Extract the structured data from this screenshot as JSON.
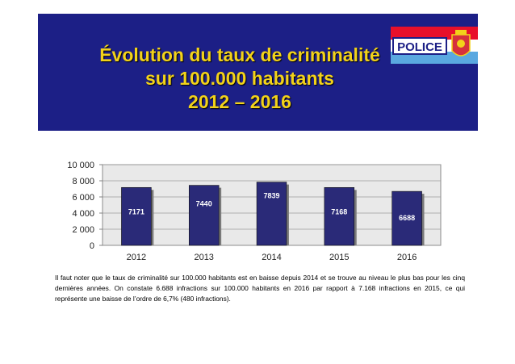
{
  "header": {
    "title_lines": [
      "Évolution du taux de criminalité",
      "sur 100.000 habitants",
      "2012 – 2016"
    ],
    "badge_text": "POLICE",
    "colors": {
      "banner": "#1c1f86",
      "title": "#f2d21a",
      "flag_red": "#e8102a",
      "flag_blue": "#5aa8e0"
    }
  },
  "chart_data": {
    "type": "bar",
    "title": "Évolution du taux de criminalité sur 100.000 habitants 2012 – 2016",
    "categories": [
      "2012",
      "2013",
      "2014",
      "2015",
      "2016"
    ],
    "values": [
      7171,
      7440,
      7839,
      7168,
      6688
    ],
    "value_labels": [
      "7171",
      "7440",
      "7839",
      "7168",
      "6688"
    ],
    "ylim": [
      0,
      10000
    ],
    "y_ticks": [
      0,
      2000,
      4000,
      6000,
      8000,
      10000
    ],
    "y_tick_labels": [
      "0",
      "2 000",
      "4 000",
      "6 000",
      "8 000",
      "10 000"
    ],
    "xlabel": "",
    "ylabel": "",
    "grid": true,
    "bar_color": "#2a2a78",
    "label_color": "#ffffff"
  },
  "caption": {
    "text": "Il faut noter que le taux de criminalité sur 100.000 habitants est en baisse depuis 2014 et se trouve au niveau le plus bas pour les cinq dernières années. On constate 6.688 infractions sur 100.000 habitants en 2016 par rapport à 7.168 infractions en 2015, ce qui représente une baisse de l’ordre de 6,7% (480 infractions)."
  }
}
